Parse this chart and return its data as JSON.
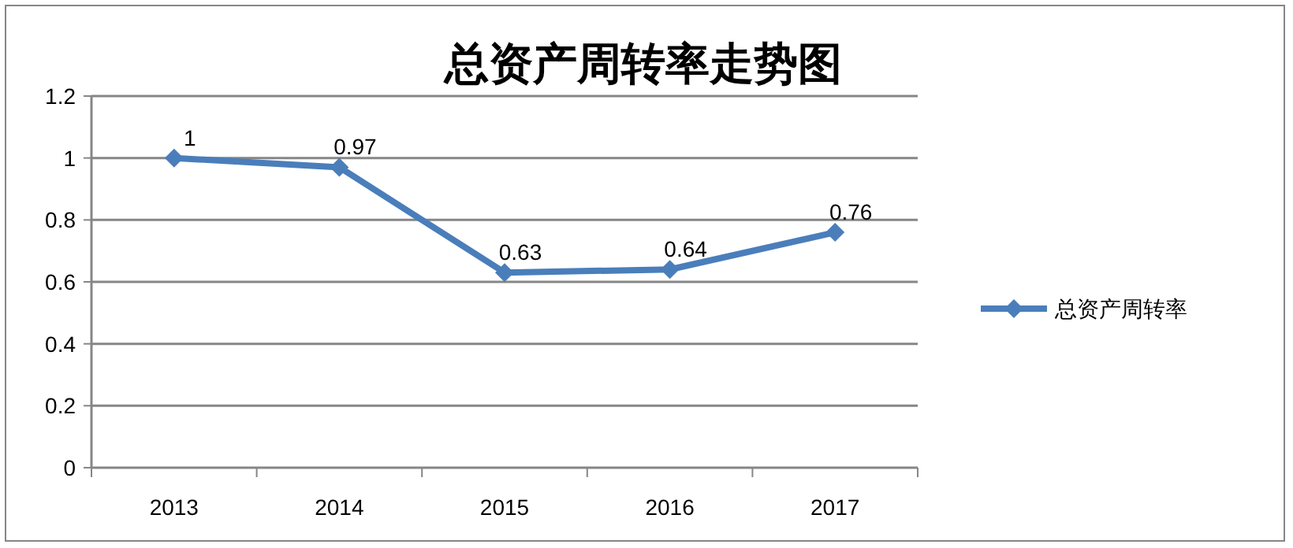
{
  "chart_data": {
    "type": "line",
    "title": "总资产周转率走势图",
    "categories": [
      "2013",
      "2014",
      "2015",
      "2016",
      "2017"
    ],
    "series": [
      {
        "name": "总资产周转率",
        "color": "#4a7ebb",
        "values": [
          1,
          0.97,
          0.63,
          0.64,
          0.76
        ]
      }
    ],
    "ylim": [
      0,
      1.2
    ],
    "yticks": [
      0,
      0.2,
      0.4,
      0.6,
      0.8,
      1,
      1.2
    ],
    "grid": "y",
    "legend": "right",
    "marker": "diamond",
    "line_style": "solid",
    "data_labels": true
  }
}
